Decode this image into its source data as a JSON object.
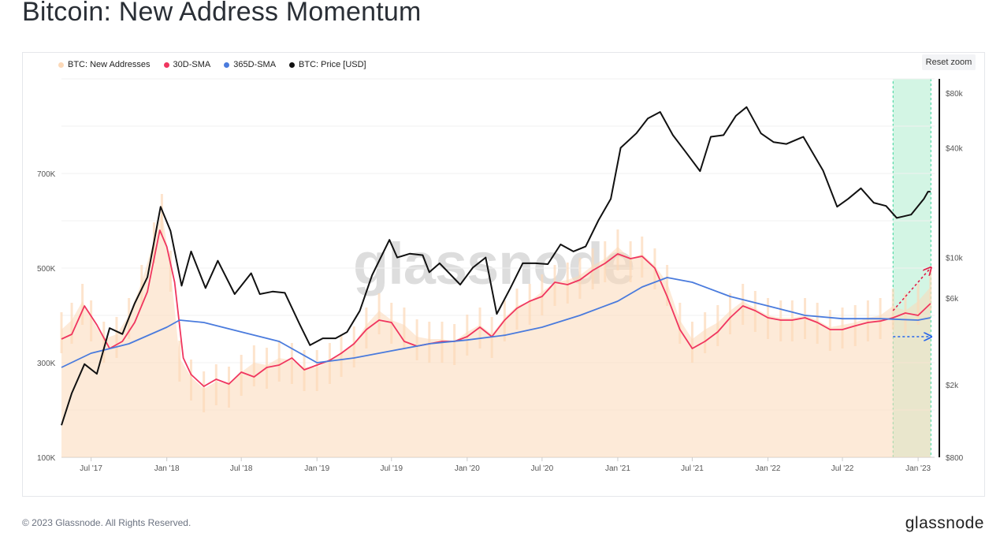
{
  "page": {
    "title": "Bitcoin: New Address Momentum",
    "footer": "© 2023 Glassnode. All Rights Reserved.",
    "brand": "glassnode",
    "watermark": "glassnode",
    "reset_zoom_label": "Reset zoom"
  },
  "legend": [
    {
      "label": "BTC: New Addresses",
      "color": "#fcd9b8"
    },
    {
      "label": "30D-SMA",
      "color": "#f0365f"
    },
    {
      "label": "365D-SMA",
      "color": "#4a7bdd"
    },
    {
      "label": "BTC: Price [USD]",
      "color": "#111111"
    }
  ],
  "chart_data": {
    "type": "line",
    "x_ticks": [
      "Jul '17",
      "Jan '18",
      "Jul '18",
      "Jan '19",
      "Jul '19",
      "Jan '20",
      "Jul '20",
      "Jan '21",
      "Jul '21",
      "Jan '22",
      "Jul '22",
      "Jan '23"
    ],
    "y_left_ticks": [
      {
        "label": "700K",
        "value": 700000
      },
      {
        "label": "500K",
        "value": 500000
      },
      {
        "label": "300K",
        "value": 300000
      },
      {
        "label": "100K",
        "value": 100000
      }
    ],
    "y_right_ticks": [
      {
        "label": "$80k",
        "value": 80000
      },
      {
        "label": "$40k",
        "value": 40000
      },
      {
        "label": "$10k",
        "value": 10000
      },
      {
        "label": "$6k",
        "value": 6000
      },
      {
        "label": "$2k",
        "value": 2000
      },
      {
        "label": "$800",
        "value": 800
      }
    ],
    "y_left_range": [
      100000,
      900000
    ],
    "y_right_scale": "log",
    "y_right_range": [
      800,
      80000
    ],
    "highlight_region": {
      "from": "2022-11-01",
      "to": "2023-02-01",
      "color": "#d3f5e4"
    },
    "series": [
      {
        "name": "BTC: New Addresses",
        "color": "#fcd9b8",
        "axis": "left",
        "style": "area",
        "points": [
          [
            "2017-04-20",
            370000
          ],
          [
            "2017-05-15",
            390000
          ],
          [
            "2017-06-10",
            430000
          ],
          [
            "2017-07-01",
            395000
          ],
          [
            "2017-08-01",
            350000
          ],
          [
            "2017-09-01",
            360000
          ],
          [
            "2017-10-01",
            400000
          ],
          [
            "2017-11-01",
            470000
          ],
          [
            "2017-12-01",
            560000
          ],
          [
            "2017-12-20",
            620000
          ],
          [
            "2018-01-10",
            500000
          ],
          [
            "2018-02-01",
            310000
          ],
          [
            "2018-03-01",
            270000
          ],
          [
            "2018-04-01",
            245000
          ],
          [
            "2018-05-01",
            260000
          ],
          [
            "2018-06-01",
            255000
          ],
          [
            "2018-07-01",
            280000
          ],
          [
            "2018-08-01",
            300000
          ],
          [
            "2018-09-01",
            295000
          ],
          [
            "2018-10-01",
            310000
          ],
          [
            "2018-11-01",
            305000
          ],
          [
            "2018-12-01",
            290000
          ],
          [
            "2019-01-01",
            290000
          ],
          [
            "2019-02-01",
            305000
          ],
          [
            "2019-03-01",
            320000
          ],
          [
            "2019-04-01",
            340000
          ],
          [
            "2019-05-01",
            380000
          ],
          [
            "2019-06-01",
            410000
          ],
          [
            "2019-07-01",
            390000
          ],
          [
            "2019-08-01",
            380000
          ],
          [
            "2019-09-01",
            355000
          ],
          [
            "2019-10-01",
            350000
          ],
          [
            "2019-11-01",
            350000
          ],
          [
            "2019-12-01",
            345000
          ],
          [
            "2020-01-01",
            365000
          ],
          [
            "2020-02-01",
            380000
          ],
          [
            "2020-03-01",
            360000
          ],
          [
            "2020-04-01",
            395000
          ],
          [
            "2020-05-01",
            420000
          ],
          [
            "2020-06-01",
            430000
          ],
          [
            "2020-07-01",
            450000
          ],
          [
            "2020-08-01",
            470000
          ],
          [
            "2020-09-01",
            475000
          ],
          [
            "2020-10-01",
            485000
          ],
          [
            "2020-11-01",
            505000
          ],
          [
            "2020-12-01",
            520000
          ],
          [
            "2021-01-01",
            545000
          ],
          [
            "2021-02-01",
            520000
          ],
          [
            "2021-03-01",
            530000
          ],
          [
            "2021-04-01",
            505000
          ],
          [
            "2021-05-01",
            470000
          ],
          [
            "2021-06-01",
            390000
          ],
          [
            "2021-07-01",
            350000
          ],
          [
            "2021-08-01",
            370000
          ],
          [
            "2021-09-01",
            385000
          ],
          [
            "2021-10-01",
            410000
          ],
          [
            "2021-11-01",
            430000
          ],
          [
            "2021-12-01",
            415000
          ],
          [
            "2022-01-01",
            400000
          ],
          [
            "2022-02-01",
            395000
          ],
          [
            "2022-03-01",
            395000
          ],
          [
            "2022-04-01",
            400000
          ],
          [
            "2022-05-01",
            390000
          ],
          [
            "2022-06-01",
            375000
          ],
          [
            "2022-07-01",
            380000
          ],
          [
            "2022-08-01",
            385000
          ],
          [
            "2022-09-01",
            395000
          ],
          [
            "2022-10-01",
            400000
          ],
          [
            "2022-11-01",
            420000
          ],
          [
            "2022-12-01",
            410000
          ],
          [
            "2023-01-01",
            430000
          ],
          [
            "2023-01-31",
            460000
          ]
        ]
      },
      {
        "name": "30D-SMA",
        "color": "#f0365f",
        "axis": "left",
        "style": "line",
        "points": [
          [
            "2017-04-20",
            350000
          ],
          [
            "2017-05-15",
            360000
          ],
          [
            "2017-06-15",
            420000
          ],
          [
            "2017-07-15",
            380000
          ],
          [
            "2017-08-15",
            330000
          ],
          [
            "2017-09-15",
            345000
          ],
          [
            "2017-10-15",
            385000
          ],
          [
            "2017-11-15",
            450000
          ],
          [
            "2017-12-15",
            580000
          ],
          [
            "2018-01-01",
            545000
          ],
          [
            "2018-01-20",
            470000
          ],
          [
            "2018-02-10",
            310000
          ],
          [
            "2018-03-01",
            275000
          ],
          [
            "2018-04-01",
            250000
          ],
          [
            "2018-05-01",
            265000
          ],
          [
            "2018-06-01",
            255000
          ],
          [
            "2018-07-01",
            280000
          ],
          [
            "2018-08-01",
            270000
          ],
          [
            "2018-09-01",
            290000
          ],
          [
            "2018-10-01",
            295000
          ],
          [
            "2018-11-01",
            310000
          ],
          [
            "2018-12-01",
            285000
          ],
          [
            "2019-01-01",
            295000
          ],
          [
            "2019-02-01",
            305000
          ],
          [
            "2019-03-01",
            320000
          ],
          [
            "2019-04-01",
            340000
          ],
          [
            "2019-05-01",
            370000
          ],
          [
            "2019-06-01",
            390000
          ],
          [
            "2019-07-01",
            385000
          ],
          [
            "2019-08-01",
            345000
          ],
          [
            "2019-09-01",
            335000
          ],
          [
            "2019-10-01",
            340000
          ],
          [
            "2019-11-01",
            345000
          ],
          [
            "2019-12-01",
            345000
          ],
          [
            "2020-01-01",
            355000
          ],
          [
            "2020-02-01",
            375000
          ],
          [
            "2020-03-01",
            355000
          ],
          [
            "2020-04-01",
            390000
          ],
          [
            "2020-05-01",
            415000
          ],
          [
            "2020-06-01",
            430000
          ],
          [
            "2020-07-01",
            440000
          ],
          [
            "2020-08-01",
            470000
          ],
          [
            "2020-09-01",
            465000
          ],
          [
            "2020-10-01",
            475000
          ],
          [
            "2020-11-01",
            495000
          ],
          [
            "2020-12-01",
            510000
          ],
          [
            "2021-01-01",
            530000
          ],
          [
            "2021-02-01",
            520000
          ],
          [
            "2021-03-01",
            525000
          ],
          [
            "2021-04-01",
            500000
          ],
          [
            "2021-05-01",
            440000
          ],
          [
            "2021-06-01",
            370000
          ],
          [
            "2021-07-01",
            330000
          ],
          [
            "2021-08-01",
            345000
          ],
          [
            "2021-09-01",
            365000
          ],
          [
            "2021-10-01",
            395000
          ],
          [
            "2021-11-01",
            420000
          ],
          [
            "2021-12-01",
            410000
          ],
          [
            "2022-01-01",
            395000
          ],
          [
            "2022-02-01",
            390000
          ],
          [
            "2022-03-01",
            390000
          ],
          [
            "2022-04-01",
            395000
          ],
          [
            "2022-05-01",
            385000
          ],
          [
            "2022-06-01",
            370000
          ],
          [
            "2022-07-01",
            370000
          ],
          [
            "2022-08-01",
            378000
          ],
          [
            "2022-09-01",
            385000
          ],
          [
            "2022-10-01",
            388000
          ],
          [
            "2022-11-01",
            395000
          ],
          [
            "2022-12-01",
            405000
          ],
          [
            "2023-01-01",
            400000
          ],
          [
            "2023-01-31",
            425000
          ]
        ]
      },
      {
        "name": "365D-SMA",
        "color": "#4a7bdd",
        "axis": "left",
        "style": "line",
        "points": [
          [
            "2017-04-20",
            290000
          ],
          [
            "2017-07-01",
            320000
          ],
          [
            "2017-10-01",
            340000
          ],
          [
            "2018-01-01",
            375000
          ],
          [
            "2018-02-01",
            390000
          ],
          [
            "2018-04-01",
            385000
          ],
          [
            "2018-07-01",
            365000
          ],
          [
            "2018-10-01",
            345000
          ],
          [
            "2019-01-01",
            300000
          ],
          [
            "2019-04-01",
            310000
          ],
          [
            "2019-07-01",
            325000
          ],
          [
            "2019-10-01",
            340000
          ],
          [
            "2020-01-01",
            348000
          ],
          [
            "2020-04-01",
            358000
          ],
          [
            "2020-07-01",
            375000
          ],
          [
            "2020-10-01",
            400000
          ],
          [
            "2021-01-01",
            430000
          ],
          [
            "2021-03-01",
            460000
          ],
          [
            "2021-05-01",
            480000
          ],
          [
            "2021-07-01",
            470000
          ],
          [
            "2021-10-01",
            440000
          ],
          [
            "2022-01-01",
            420000
          ],
          [
            "2022-04-01",
            400000
          ],
          [
            "2022-07-01",
            393000
          ],
          [
            "2022-10-01",
            393000
          ],
          [
            "2023-01-01",
            390000
          ],
          [
            "2023-01-31",
            395000
          ]
        ]
      },
      {
        "name": "BTC: Price [USD]",
        "color": "#111111",
        "axis": "right",
        "style": "line",
        "points": [
          [
            "2017-04-20",
            1200
          ],
          [
            "2017-05-15",
            1800
          ],
          [
            "2017-06-15",
            2600
          ],
          [
            "2017-07-15",
            2300
          ],
          [
            "2017-08-15",
            4100
          ],
          [
            "2017-09-15",
            3800
          ],
          [
            "2017-10-15",
            5600
          ],
          [
            "2017-11-15",
            7800
          ],
          [
            "2017-12-17",
            19000
          ],
          [
            "2018-01-10",
            14000
          ],
          [
            "2018-02-06",
            7000
          ],
          [
            "2018-03-01",
            10800
          ],
          [
            "2018-04-05",
            6800
          ],
          [
            "2018-05-05",
            9600
          ],
          [
            "2018-06-15",
            6300
          ],
          [
            "2018-07-25",
            8200
          ],
          [
            "2018-08-15",
            6300
          ],
          [
            "2018-09-15",
            6500
          ],
          [
            "2018-10-15",
            6400
          ],
          [
            "2018-11-20",
            4300
          ],
          [
            "2018-12-15",
            3300
          ],
          [
            "2019-01-15",
            3600
          ],
          [
            "2019-02-15",
            3600
          ],
          [
            "2019-03-15",
            3900
          ],
          [
            "2019-04-15",
            5100
          ],
          [
            "2019-05-15",
            8000
          ],
          [
            "2019-06-26",
            12500
          ],
          [
            "2019-07-15",
            10000
          ],
          [
            "2019-08-15",
            10500
          ],
          [
            "2019-09-15",
            10300
          ],
          [
            "2019-10-01",
            8300
          ],
          [
            "2019-10-26",
            9300
          ],
          [
            "2019-12-15",
            7100
          ],
          [
            "2020-01-15",
            8800
          ],
          [
            "2020-02-15",
            10000
          ],
          [
            "2020-03-13",
            4900
          ],
          [
            "2020-04-15",
            6800
          ],
          [
            "2020-05-15",
            9300
          ],
          [
            "2020-06-15",
            9300
          ],
          [
            "2020-07-15",
            9200
          ],
          [
            "2020-08-15",
            11800
          ],
          [
            "2020-09-15",
            10800
          ],
          [
            "2020-10-15",
            11500
          ],
          [
            "2020-11-15",
            16000
          ],
          [
            "2020-12-15",
            21000
          ],
          [
            "2021-01-08",
            40000
          ],
          [
            "2021-02-15",
            48000
          ],
          [
            "2021-03-15",
            58000
          ],
          [
            "2021-04-14",
            63000
          ],
          [
            "2021-05-15",
            47000
          ],
          [
            "2021-06-15",
            38000
          ],
          [
            "2021-07-20",
            29800
          ],
          [
            "2021-08-15",
            46000
          ],
          [
            "2021-09-15",
            47000
          ],
          [
            "2021-10-15",
            60000
          ],
          [
            "2021-11-10",
            67000
          ],
          [
            "2021-12-15",
            48000
          ],
          [
            "2022-01-15",
            43000
          ],
          [
            "2022-02-15",
            42000
          ],
          [
            "2022-03-28",
            46000
          ],
          [
            "2022-05-15",
            30000
          ],
          [
            "2022-06-18",
            19000
          ],
          [
            "2022-07-15",
            21000
          ],
          [
            "2022-08-15",
            24000
          ],
          [
            "2022-09-15",
            20000
          ],
          [
            "2022-10-15",
            19200
          ],
          [
            "2022-11-10",
            16500
          ],
          [
            "2022-12-15",
            17200
          ],
          [
            "2023-01-15",
            21000
          ],
          [
            "2023-01-25",
            23000
          ],
          [
            "2023-01-31",
            23000
          ]
        ]
      }
    ],
    "annotations": [
      {
        "type": "arrow",
        "color": "#e11d48",
        "style": "dotted",
        "from": [
          "2022-11-01",
          410000
        ],
        "to": [
          "2023-01-31",
          500000
        ]
      },
      {
        "type": "arrow",
        "color": "#2563eb",
        "style": "dotted",
        "from": [
          "2022-11-01",
          355000
        ],
        "to": [
          "2023-01-31",
          355000
        ]
      }
    ]
  }
}
